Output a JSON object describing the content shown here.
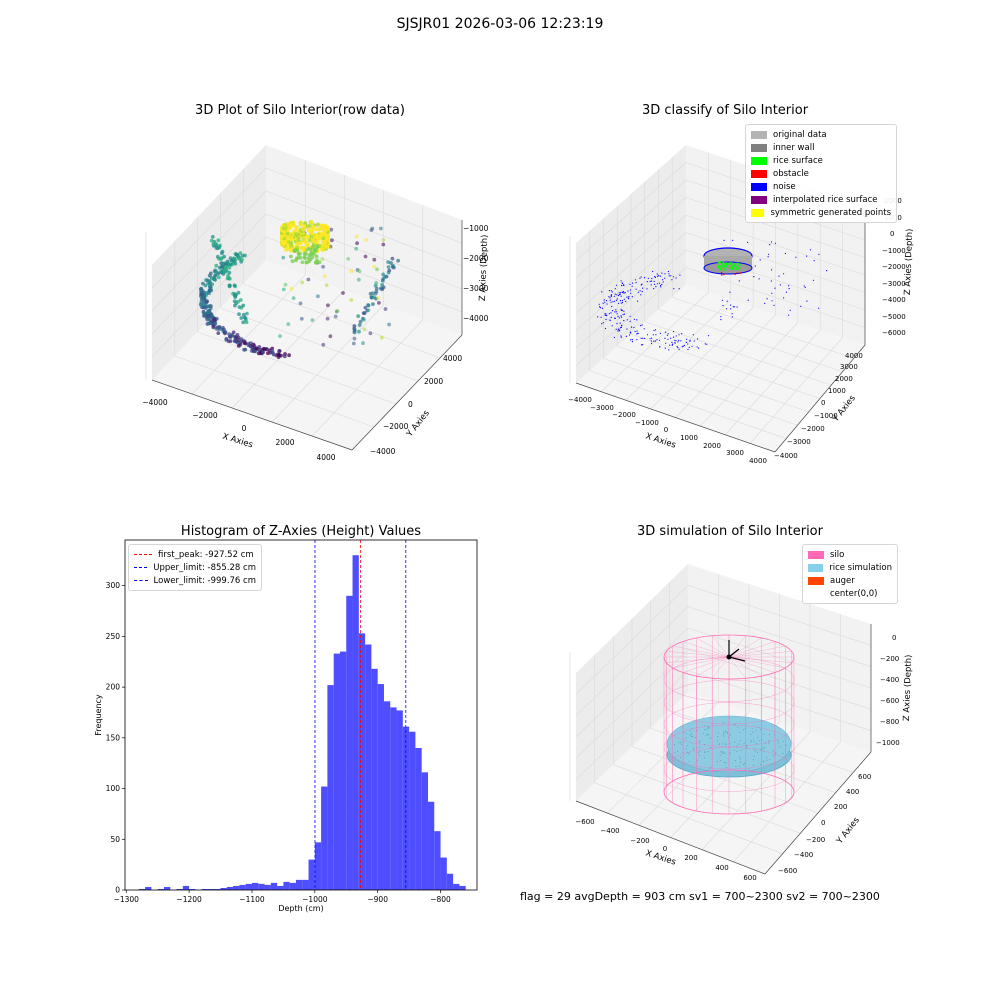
{
  "title": "SJSJR01 2026-03-06 12:23:19",
  "footer": "flag = 29  avgDepth = 903 cm  sv1 = 700~2300  sv2 = 700~2300",
  "chart_data": [
    {
      "type": "scatter",
      "projection": "3d",
      "title": "3D Plot of Silo Interior(row data)",
      "xlabel": "X Axies",
      "ylabel": "Y Axies",
      "zlabel": "Z Axies (Depth)",
      "x_ticks": [
        "−4000",
        "−2000",
        "0",
        "2000",
        "4000"
      ],
      "y_ticks": [
        "−4000",
        "−2000",
        "0",
        "2000",
        "4000"
      ],
      "z_ticks": [
        "−1000",
        "−2000",
        "−3000",
        "−4000"
      ],
      "colormap": "viridis"
    },
    {
      "type": "scatter",
      "projection": "3d",
      "title": "3D classify of Silo Interior",
      "xlabel": "X Axies",
      "ylabel": "Y Axies",
      "zlabel": "Z Axies (Depth)",
      "x_ticks": [
        "−4000",
        "−3000",
        "−2000",
        "−1000",
        "0",
        "1000",
        "2000",
        "3000",
        "4000"
      ],
      "y_ticks": [
        "−4000",
        "−3000",
        "−2000",
        "−1000",
        "0",
        "1000",
        "2000",
        "3000",
        "4000"
      ],
      "z_ticks": [
        "2000",
        "1000",
        "0",
        "−1000",
        "−2000",
        "−3000",
        "−4000",
        "−5000",
        "−6000"
      ],
      "legend": [
        {
          "label": "original data",
          "color": "#b3b3b3"
        },
        {
          "label": "inner wall",
          "color": "#808080"
        },
        {
          "label": "rice surface",
          "color": "#00ff00"
        },
        {
          "label": "obstacle",
          "color": "#ff0000"
        },
        {
          "label": "noise",
          "color": "#0000ff"
        },
        {
          "label": "interpolated rice surface",
          "color": "#800080"
        },
        {
          "label": "symmetric generated points",
          "color": "#ffff00"
        }
      ]
    },
    {
      "type": "bar",
      "title": "Histogram of Z-Axies (Height) Values",
      "xlabel": "Depth (cm)",
      "ylabel": "Frequency",
      "xlim": [
        -1302,
        -742
      ],
      "ylim": [
        0,
        345
      ],
      "x_ticks": [
        -1300,
        -1200,
        -1100,
        -1000,
        -900,
        -800
      ],
      "x_tick_labels": [
        "−1300",
        "−1200",
        "−1100",
        "−1000",
        "−900",
        "−800"
      ],
      "y_ticks": [
        0,
        50,
        100,
        150,
        200,
        250,
        300
      ],
      "bar_color": "#4545ff",
      "bin_width": 10,
      "bin_starts": [
        -1280,
        -1270,
        -1260,
        -1250,
        -1240,
        -1230,
        -1220,
        -1210,
        -1200,
        -1190,
        -1180,
        -1170,
        -1160,
        -1150,
        -1140,
        -1130,
        -1120,
        -1110,
        -1100,
        -1090,
        -1080,
        -1070,
        -1060,
        -1050,
        -1040,
        -1030,
        -1020,
        -1010,
        -1000,
        -990,
        -980,
        -970,
        -960,
        -950,
        -940,
        -930,
        -920,
        -910,
        -900,
        -890,
        -880,
        -870,
        -860,
        -850,
        -840,
        -830,
        -820,
        -810,
        -800,
        -790,
        -780,
        -770
      ],
      "values": [
        1,
        3,
        0,
        1,
        3,
        0,
        1,
        4,
        1,
        0,
        1,
        1,
        1,
        2,
        3,
        4,
        5,
        6,
        7,
        6,
        5,
        7,
        4,
        8,
        7,
        10,
        10,
        30,
        47,
        102,
        202,
        233,
        235,
        290,
        330,
        253,
        242,
        218,
        203,
        186,
        180,
        177,
        161,
        156,
        140,
        116,
        87,
        58,
        32,
        16,
        6,
        4
      ],
      "vlines": [
        {
          "label": "first_peak: -927.52 cm",
          "x": -927.52,
          "color": "#ff0000"
        },
        {
          "label": "Upper_limit: -855.28 cm",
          "x": -855.28,
          "color": "#0000ff"
        },
        {
          "label": "Lower_limit: -999.76 cm",
          "x": -999.76,
          "color": "#0000ff"
        }
      ],
      "legend_position": "upper-left"
    },
    {
      "type": "surface",
      "projection": "3d",
      "title": "3D simulation of Silo Interior",
      "xlabel": "X Axies",
      "ylabel": "Y Axies",
      "zlabel": "Z Axies (Depth)",
      "x_ticks": [
        "−600",
        "−400",
        "−200",
        "0",
        "200",
        "400",
        "600"
      ],
      "y_ticks": [
        "−600",
        "−400",
        "−200",
        "0",
        "200",
        "400",
        "600"
      ],
      "z_ticks": [
        "0",
        "−200",
        "−400",
        "−600",
        "−800",
        "−1000"
      ],
      "legend": [
        {
          "label": "silo",
          "color": "#ff69b4"
        },
        {
          "label": "rice simulation",
          "color": "#87ceeb"
        },
        {
          "label": "auger",
          "color": "#ff4500"
        },
        {
          "label": "center(0,0)",
          "color": "#ffffff"
        }
      ]
    }
  ]
}
